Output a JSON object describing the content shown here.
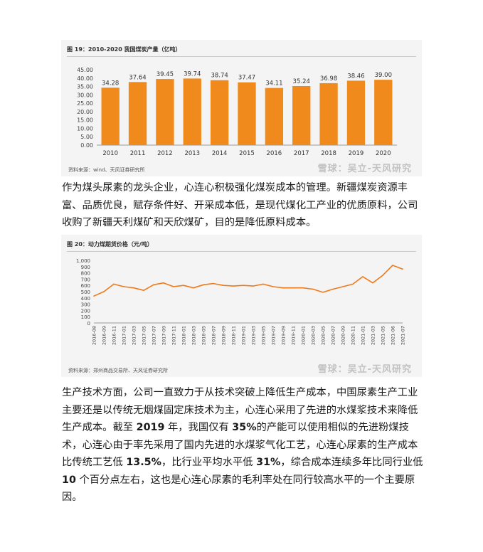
{
  "chart_data": [
    {
      "type": "bar",
      "title": "图 19：2010-2020 我国煤炭产量（亿吨）",
      "categories": [
        "2010",
        "2011",
        "2012",
        "2013",
        "2014",
        "2015",
        "2016",
        "2017",
        "2018",
        "2019",
        "2020"
      ],
      "values": [
        34.28,
        37.64,
        39.45,
        39.74,
        38.74,
        37.47,
        34.11,
        35.24,
        36.98,
        38.46,
        39.0
      ],
      "value_labels": [
        "34.28",
        "37.64",
        "39.45",
        "39.74",
        "38.74",
        "37.47",
        "34.11",
        "35.24",
        "36.98",
        "38.46",
        "39.00"
      ],
      "ylim": [
        0,
        45
      ],
      "yticks": [
        "0.00",
        "5.00",
        "10.00",
        "15.00",
        "20.00",
        "25.00",
        "30.00",
        "35.00",
        "40.00",
        "45.00"
      ],
      "xlabel": "",
      "ylabel": "",
      "color": "#f08a1c",
      "source": "资料来源：wind、天风证券研究所",
      "watermark": "雪球：吴立-天风研究"
    },
    {
      "type": "line",
      "title": "图 20：动力煤期货价格（元/吨）",
      "x": [
        "2016-08",
        "2016-09",
        "2016-11",
        "2017-01",
        "2017-03",
        "2017-05",
        "2017-07",
        "2017-09",
        "2017-11",
        "2018-01",
        "2018-03",
        "2018-05",
        "2018-07",
        "2018-09",
        "2018-11",
        "2019-01",
        "2019-03",
        "2019-05",
        "2019-07",
        "2019-09",
        "2019-11",
        "2020-01",
        "2020-03",
        "2020-05",
        "2020-07",
        "2020-09",
        "2020-11",
        "2021-01",
        "2021-03",
        "2021-05",
        "2021-06",
        "2021-07"
      ],
      "values": [
        430,
        500,
        620,
        580,
        560,
        520,
        610,
        640,
        580,
        600,
        560,
        610,
        630,
        600,
        590,
        600,
        590,
        620,
        580,
        560,
        560,
        560,
        540,
        490,
        540,
        580,
        620,
        740,
        640,
        760,
        920,
        860
      ],
      "ylim": [
        0,
        1000
      ],
      "yticks": [
        "0",
        "100",
        "200",
        "300",
        "400",
        "500",
        "600",
        "700",
        "800",
        "900",
        "1,000"
      ],
      "xlabel": "",
      "ylabel": "",
      "color": "#f07a1a",
      "source": "资料来源：郑州商品交易所、天风证券研究所",
      "watermark": "雪球：吴立-天风研究"
    }
  ],
  "paragraphs": {
    "p1": "作为煤头尿素的龙头企业，心连心积极强化煤炭成本的管理。新疆煤炭资源丰富、品质优良，赋存条件好、开采成本低，是现代煤化工产业的优质原料，公司收购了新疆天利煤矿和天欣煤矿，目的是降低原料成本。",
    "p2_a": "生产技术方面，公司一直致力于从技术突破上降低生产成本，中国尿素生产工业主要还是以传统无烟煤固定床技术为主，心连心采用了先进的水煤浆技术来降低生产成本。截至 ",
    "p2_year": "2019",
    "p2_b": " 年，我国仅有 ",
    "p2_pct1": "35%",
    "p2_c": "的产能可以使用相似的先进粉煤技术，心连心由于率先采用了国内先进的水煤浆气化工艺，心连心尿素的生产成本比传统工艺低 ",
    "p2_pct2": "13.5%",
    "p2_d": "，比行业平均水平低 ",
    "p2_pct3": "31%",
    "p2_e": "，综合成本连续多年比同行业低 ",
    "p2_num": "10",
    "p2_f": " 个百分点左右，这也是心连心尿素的毛利率处在同行较高水平的一个主要原因。"
  }
}
